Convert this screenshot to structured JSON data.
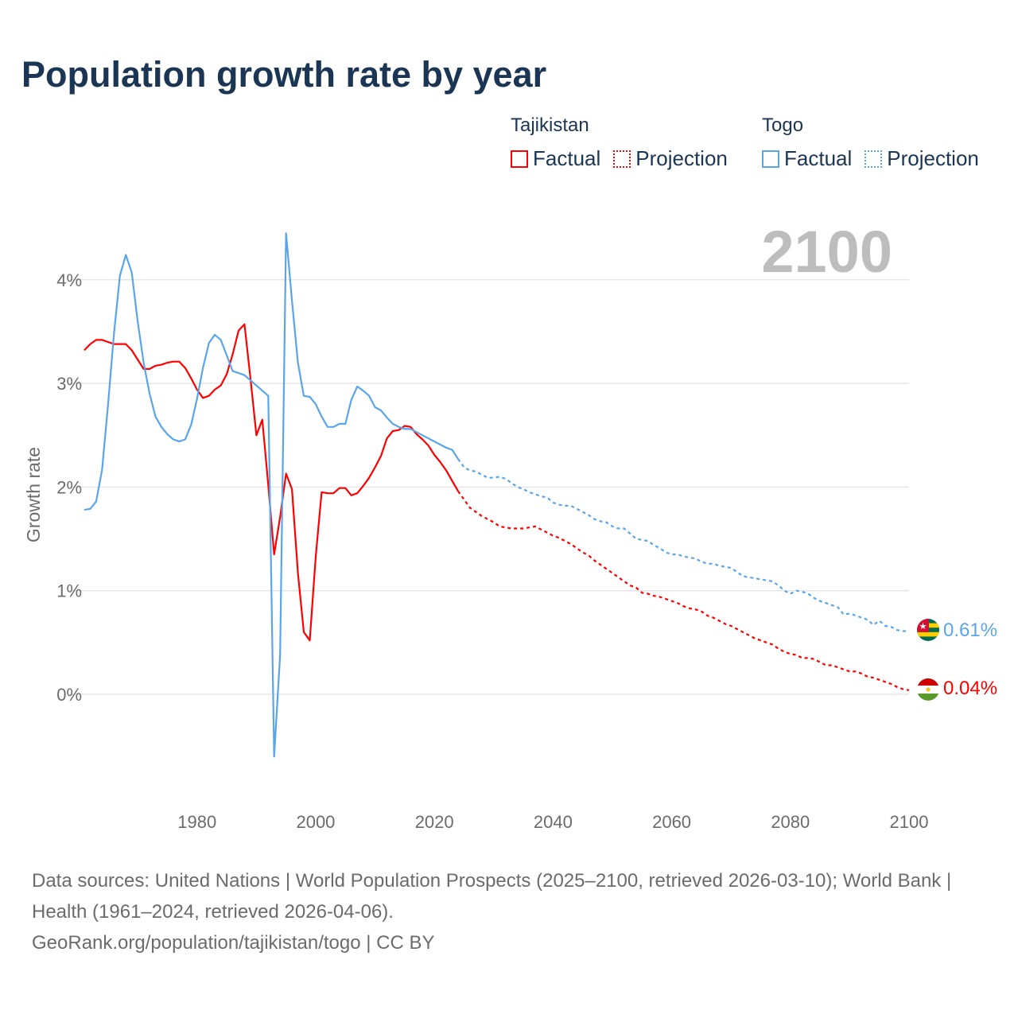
{
  "title": "Population growth rate by year",
  "legend": {
    "groups": [
      {
        "name": "Tajikistan",
        "factual": "Factual",
        "projection": "Projection",
        "color": "#ff0000"
      },
      {
        "name": "Togo",
        "factual": "Factual",
        "projection": "Projection",
        "color": "#5aa5ea"
      }
    ]
  },
  "current_year_label": "2100",
  "end_labels": {
    "togo": "0.61%",
    "tajikistan": "0.04%"
  },
  "footer": {
    "sources": "Data sources: United Nations | World Population Prospects (2025–2100, retrieved 2026-03-10); World Bank | Health (1961–2024, retrieved 2026-04-06).",
    "link": "GeoRank.org/population/tajikistan/togo | CC BY"
  },
  "chart_data": {
    "type": "line",
    "title": "Population growth rate by year",
    "xlabel": "",
    "ylabel": "Growth rate",
    "xlim": [
      1961,
      2100
    ],
    "ylim": [
      -1,
      4.6
    ],
    "x_ticks": [
      "1980",
      "2000",
      "2020",
      "2040",
      "2060",
      "2080",
      "2100"
    ],
    "y_ticks": [
      "0%",
      "1%",
      "2%",
      "3%",
      "4%"
    ],
    "grid": true,
    "legend_position": "top-right",
    "series": [
      {
        "name": "Tajikistan Factual",
        "color": "#ff0000",
        "style": "solid",
        "start_year": 1961,
        "values": [
          3.32,
          3.38,
          3.42,
          3.42,
          3.4,
          3.38,
          3.38,
          3.38,
          3.32,
          3.23,
          3.14,
          3.14,
          3.17,
          3.18,
          3.2,
          3.21,
          3.21,
          3.15,
          3.05,
          2.94,
          2.86,
          2.88,
          2.94,
          2.98,
          3.09,
          3.28,
          3.51,
          3.57,
          3.05,
          2.5,
          2.65,
          2.02,
          1.35,
          1.71,
          2.13,
          1.98,
          1.17,
          0.6,
          0.52,
          1.33,
          1.95,
          1.94,
          1.94,
          1.99,
          1.99,
          1.92,
          1.94,
          2.01,
          2.09,
          2.19,
          2.3,
          2.47,
          2.54,
          2.55,
          2.59,
          2.58,
          2.51,
          2.46,
          2.4,
          2.31,
          2.24,
          2.16,
          2.06,
          1.96
        ]
      },
      {
        "name": "Tajikistan Projection",
        "color": "#ff0000",
        "style": "dotted",
        "start_year": 2024,
        "values": [
          1.96,
          1.88,
          1.8,
          1.76,
          1.72,
          1.69,
          1.66,
          1.62,
          1.61,
          1.6,
          1.6,
          1.6,
          1.61,
          1.62,
          1.59,
          1.56,
          1.53,
          1.51,
          1.48,
          1.45,
          1.41,
          1.37,
          1.34,
          1.29,
          1.25,
          1.21,
          1.17,
          1.13,
          1.09,
          1.05,
          1.03,
          0.98,
          0.97,
          0.95,
          0.94,
          0.92,
          0.9,
          0.88,
          0.85,
          0.83,
          0.82,
          0.8,
          0.76,
          0.74,
          0.71,
          0.68,
          0.66,
          0.63,
          0.6,
          0.57,
          0.54,
          0.52,
          0.5,
          0.48,
          0.44,
          0.41,
          0.39,
          0.38,
          0.35,
          0.35,
          0.34,
          0.31,
          0.28,
          0.28,
          0.26,
          0.24,
          0.22,
          0.22,
          0.2,
          0.17,
          0.16,
          0.14,
          0.12,
          0.1,
          0.07,
          0.05,
          0.04
        ]
      },
      {
        "name": "Togo Factual",
        "color": "#5aa5ea",
        "style": "solid",
        "start_year": 1961,
        "values": [
          1.78,
          1.79,
          1.86,
          2.17,
          2.79,
          3.48,
          4.04,
          4.24,
          4.07,
          3.6,
          3.2,
          2.9,
          2.68,
          2.58,
          2.51,
          2.46,
          2.44,
          2.46,
          2.6,
          2.85,
          3.15,
          3.39,
          3.47,
          3.42,
          3.27,
          3.12,
          3.1,
          3.08,
          3.03,
          2.98,
          2.93,
          2.88,
          -0.6,
          0.38,
          4.45,
          3.8,
          3.2,
          2.88,
          2.87,
          2.8,
          2.68,
          2.58,
          2.58,
          2.61,
          2.61,
          2.84,
          2.97,
          2.93,
          2.88,
          2.77,
          2.74,
          2.67,
          2.61,
          2.58,
          2.56,
          2.56,
          2.53,
          2.5,
          2.47,
          2.44,
          2.41,
          2.38,
          2.36,
          2.27
        ]
      },
      {
        "name": "Togo Projection",
        "color": "#5aa5ea",
        "style": "dotted",
        "start_year": 2024,
        "values": [
          2.27,
          2.19,
          2.16,
          2.15,
          2.12,
          2.09,
          2.09,
          2.1,
          2.08,
          2.04,
          2.0,
          1.98,
          1.95,
          1.93,
          1.91,
          1.9,
          1.85,
          1.83,
          1.82,
          1.82,
          1.79,
          1.76,
          1.73,
          1.69,
          1.67,
          1.66,
          1.62,
          1.6,
          1.6,
          1.55,
          1.5,
          1.49,
          1.48,
          1.44,
          1.41,
          1.37,
          1.35,
          1.35,
          1.33,
          1.32,
          1.31,
          1.28,
          1.26,
          1.26,
          1.24,
          1.23,
          1.22,
          1.18,
          1.14,
          1.13,
          1.12,
          1.11,
          1.1,
          1.09,
          1.05,
          1.0,
          0.97,
          1.0,
          0.99,
          0.97,
          0.93,
          0.9,
          0.88,
          0.86,
          0.84,
          0.77,
          0.78,
          0.76,
          0.74,
          0.72,
          0.67,
          0.71,
          0.66,
          0.65,
          0.62,
          0.61,
          0.61
        ]
      }
    ]
  }
}
